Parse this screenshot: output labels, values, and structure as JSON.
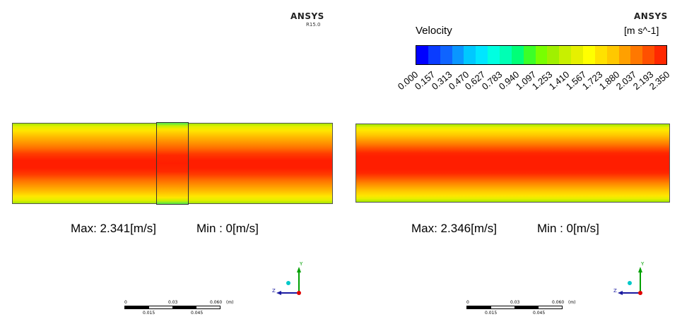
{
  "left_panel": {
    "brand": "ANSYS",
    "version": "R15.0",
    "max_text": "Max: 2.341[m/s]",
    "min_text": "Min : 0[m/s]",
    "scale_ticks_top": [
      "0",
      "0.03",
      "0.060",
      "(m)"
    ],
    "scale_ticks_bottom": [
      "0.015",
      "0.045"
    ]
  },
  "right_panel": {
    "brand": "ANSYS",
    "legend_title": "Velocity",
    "legend_unit": "[m s^-1]",
    "legend_ticks": [
      "0.000",
      "0.157",
      "0.313",
      "0.470",
      "0.627",
      "0.783",
      "0.940",
      "1.097",
      "1.253",
      "1.410",
      "1.567",
      "1.723",
      "1.880",
      "2.037",
      "2.193",
      "2.350"
    ],
    "max_text": "Max: 2.346[m/s]",
    "min_text": "Min : 0[m/s]",
    "scale_ticks_top": [
      "0",
      "0.03",
      "0.060",
      "(m)"
    ],
    "scale_ticks_bottom": [
      "0.015",
      "0.045"
    ]
  },
  "axis_labels": {
    "y": "Y",
    "z": "Z"
  },
  "colormap": [
    "#0000ff",
    "#0a3cff",
    "#0f64ff",
    "#0a96ff",
    "#00c8ff",
    "#00e6ff",
    "#00ffe1",
    "#00ffb4",
    "#00ff78",
    "#3cff28",
    "#78ff00",
    "#a0f000",
    "#c8f000",
    "#e6f000",
    "#ffff00",
    "#ffe100",
    "#ffc800",
    "#ffa000",
    "#ff7800",
    "#ff5000",
    "#ff2800"
  ]
}
